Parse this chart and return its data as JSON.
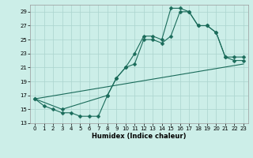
{
  "xlabel": "Humidex (Indice chaleur)",
  "bg_color": "#cceee8",
  "grid_color": "#aad4ce",
  "line_color": "#1a6b5a",
  "xlim": [
    -0.5,
    23.5
  ],
  "ylim": [
    13,
    30
  ],
  "xticks": [
    0,
    1,
    2,
    3,
    4,
    5,
    6,
    7,
    8,
    9,
    10,
    11,
    12,
    13,
    14,
    15,
    16,
    17,
    18,
    19,
    20,
    21,
    22,
    23
  ],
  "yticks": [
    13,
    15,
    17,
    19,
    21,
    23,
    25,
    27,
    29
  ],
  "line1_x": [
    0,
    1,
    2,
    3,
    4,
    5,
    6,
    7,
    8,
    9,
    10,
    11,
    12,
    13,
    14,
    15,
    16,
    17,
    18,
    19,
    20,
    21,
    22,
    23
  ],
  "line1_y": [
    16.5,
    15.5,
    15.0,
    14.5,
    14.5,
    14.0,
    14.0,
    14.0,
    17.0,
    19.5,
    21.0,
    23.0,
    25.5,
    25.5,
    25.0,
    29.5,
    29.5,
    29.0,
    27.0,
    27.0,
    26.0,
    22.5,
    22.0,
    22.0
  ],
  "line2_x": [
    0,
    3,
    8,
    9,
    10,
    11,
    12,
    13,
    14,
    15,
    16,
    17,
    18,
    19,
    20,
    21,
    22,
    23
  ],
  "line2_y": [
    16.5,
    15.0,
    17.0,
    19.5,
    21.0,
    21.5,
    25.0,
    25.0,
    24.5,
    25.5,
    29.0,
    29.0,
    27.0,
    27.0,
    26.0,
    22.5,
    22.5,
    22.5
  ],
  "line3_x": [
    0,
    23
  ],
  "line3_y": [
    16.5,
    21.5
  ],
  "markersize": 2.5,
  "linewidth": 0.8,
  "xlabel_fontsize": 6,
  "tick_fontsize": 5
}
